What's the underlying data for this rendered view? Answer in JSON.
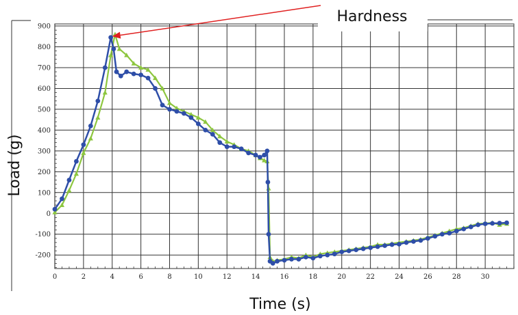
{
  "chart_data": {
    "type": "scatter",
    "xlabel": "Time (s)",
    "ylabel": "Load (g)",
    "xlim": [
      0,
      32
    ],
    "ylim": [
      -265,
      910
    ],
    "x_ticks": [
      0,
      2,
      4,
      6,
      8,
      10,
      12,
      14,
      16,
      18,
      20,
      22,
      24,
      26,
      28,
      30
    ],
    "y_ticks": [
      900,
      800,
      700,
      600,
      500,
      400,
      300,
      200,
      100,
      0,
      -100,
      -200
    ],
    "grid": true,
    "legend": "none",
    "annotation": {
      "text": "Hardness",
      "x": 4.0,
      "y": 850
    },
    "series": [
      {
        "color": "#8dc63f",
        "marker": "triangle",
        "x": [
          0,
          0.5,
          1,
          1.5,
          2,
          2.5,
          3,
          3.5,
          3.9,
          4.2,
          4.5,
          5,
          5.5,
          6,
          6.5,
          7,
          7.5,
          8,
          8.5,
          9,
          9.5,
          10,
          10.5,
          11,
          11.5,
          12,
          12.5,
          13,
          13.5,
          14,
          14.3,
          14.6,
          14.8,
          14.9,
          15.0,
          15.2,
          15.5,
          16,
          16.5,
          17,
          17.5,
          18,
          18.5,
          19,
          19.5,
          20,
          20.5,
          21,
          21.5,
          22,
          22.5,
          23,
          23.5,
          24,
          24.5,
          25,
          25.5,
          26,
          26.5,
          27,
          27.5,
          28,
          28.5,
          29,
          29.5,
          30,
          30.5,
          31,
          31.5
        ],
        "values": [
          5,
          40,
          110,
          190,
          290,
          360,
          460,
          580,
          760,
          860,
          790,
          760,
          720,
          700,
          690,
          650,
          600,
          530,
          505,
          490,
          475,
          460,
          440,
          400,
          370,
          345,
          330,
          310,
          300,
          280,
          265,
          255,
          250,
          120,
          -210,
          -230,
          -225,
          -220,
          -210,
          -215,
          -200,
          -210,
          -195,
          -190,
          -185,
          -180,
          -175,
          -170,
          -165,
          -160,
          -150,
          -150,
          -145,
          -140,
          -135,
          -130,
          -125,
          -115,
          -105,
          -95,
          -85,
          -75,
          -70,
          -60,
          -50,
          -48,
          -45,
          -55,
          -50
        ]
      },
      {
        "color": "#2e4ea8",
        "marker": "circle",
        "x": [
          0,
          0.5,
          1,
          1.5,
          2,
          2.5,
          3,
          3.5,
          3.9,
          4.1,
          4.3,
          4.6,
          5,
          5.5,
          6,
          6.5,
          7,
          7.5,
          8,
          8.5,
          9,
          9.5,
          10,
          10.5,
          11,
          11.5,
          12,
          12.5,
          13,
          13.5,
          14,
          14.3,
          14.6,
          14.8,
          14.85,
          14.9,
          15.0,
          15.2,
          15.5,
          16,
          16.5,
          17,
          17.5,
          18,
          18.5,
          19,
          19.5,
          20,
          20.5,
          21,
          21.5,
          22,
          22.5,
          23,
          23.5,
          24,
          24.5,
          25,
          25.5,
          26,
          26.5,
          27,
          27.5,
          28,
          28.5,
          29,
          29.5,
          30,
          30.5,
          31,
          31.5
        ],
        "values": [
          20,
          70,
          160,
          250,
          330,
          420,
          540,
          700,
          845,
          790,
          680,
          660,
          680,
          670,
          665,
          650,
          600,
          520,
          500,
          490,
          480,
          460,
          430,
          400,
          380,
          340,
          320,
          320,
          310,
          290,
          280,
          270,
          280,
          300,
          150,
          -100,
          -230,
          -240,
          -230,
          -225,
          -220,
          -220,
          -210,
          -215,
          -205,
          -200,
          -195,
          -185,
          -180,
          -175,
          -170,
          -165,
          -160,
          -155,
          -150,
          -148,
          -140,
          -135,
          -130,
          -120,
          -110,
          -100,
          -95,
          -85,
          -75,
          -65,
          -55,
          -50,
          -48,
          -47,
          -45
        ]
      }
    ]
  }
}
